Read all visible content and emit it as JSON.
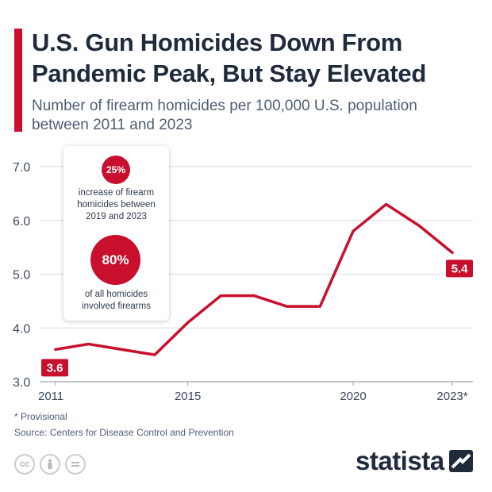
{
  "header": {
    "title": "U.S. Gun Homicides Down From Pandemic Peak, But Stay Elevated",
    "subtitle": "Number of firearm homicides per 100,000 U.S. population between 2011 and 2023"
  },
  "annotations": {
    "stat1_value": "25%",
    "stat1_text_line1": "increase of firearm",
    "stat1_text_line2": "homicides between",
    "stat1_text_line3": "2019 and 2023",
    "stat2_value": "80%",
    "stat2_text_line1": "of all homicides",
    "stat2_text_line2": "involved firearms"
  },
  "footer": {
    "footnote": "* Provisional",
    "source": "Source: Centers for Disease Control and Prevention",
    "brand": "statista",
    "license_icons": [
      "cc-icon",
      "attribution-icon",
      "no-derivatives-icon"
    ]
  },
  "colors": {
    "accent": "#c8102e",
    "text": "#2e3a4d",
    "grid": "#d9dde3"
  },
  "chart_data": {
    "type": "line",
    "x": [
      2011,
      2012,
      2013,
      2014,
      2015,
      2016,
      2017,
      2018,
      2019,
      2020,
      2021,
      2022,
      2023
    ],
    "series": [
      {
        "values": [
          3.6,
          3.7,
          3.6,
          3.5,
          4.1,
          4.6,
          4.6,
          4.4,
          4.4,
          5.8,
          6.3,
          5.9,
          5.4
        ]
      }
    ],
    "x_tick_labels": [
      {
        "x": 2011,
        "label": "2011"
      },
      {
        "x": 2015,
        "label": "2015"
      },
      {
        "x": 2020,
        "label": "2020"
      },
      {
        "x": 2023,
        "label": "2023*"
      }
    ],
    "y_ticks": [
      "3.0",
      "4.0",
      "5.0",
      "6.0",
      "7.0"
    ],
    "ylim": [
      3.0,
      7.0
    ],
    "xlim": [
      2011,
      2023
    ],
    "data_labels": [
      {
        "x": 2011,
        "label": "3.6"
      },
      {
        "x": 2023,
        "label": "5.4"
      }
    ],
    "grid": true
  }
}
